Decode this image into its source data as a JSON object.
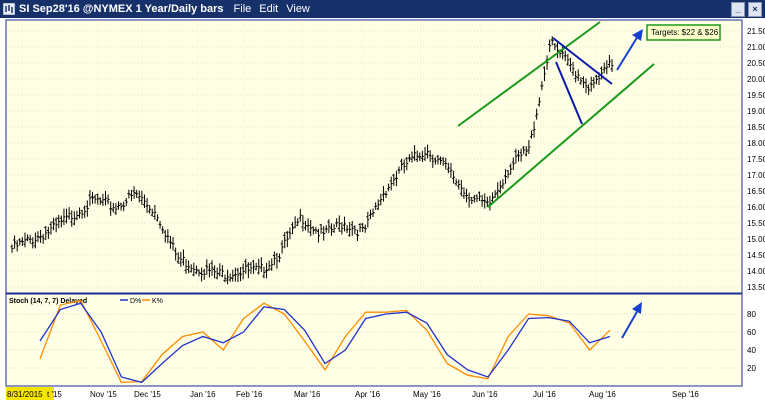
{
  "window": {
    "title": "SI Sep28'16 @NYMEX  1 Year/Daily bars",
    "menu": [
      "File",
      "Edit",
      "View"
    ],
    "colors": {
      "titlebar": "#16306a",
      "plot_bg": "#ffffe6",
      "border": "#1b2e8f",
      "channel": "#1a9a1a",
      "wedge": "#0a1aa8",
      "arrow": "#1a3fd0",
      "d_line": "#2233cc",
      "k_line": "#ff8c00"
    }
  },
  "main_panel": {
    "target_label": "Targets: $22 & $26",
    "y_ticks": [
      "21.500",
      "21.000",
      "20.500",
      "20.000",
      "19.500",
      "19.000",
      "18.500",
      "18.000",
      "17.500",
      "17.000",
      "16.500",
      "16.000",
      "15.500",
      "15.000",
      "14.500",
      "14.000",
      "13.500"
    ]
  },
  "stoch_panel": {
    "header": "Stoch (14, 7, 7) Delayed",
    "legend_d": "D%",
    "legend_k": "K%",
    "y_ticks": [
      "80",
      "60",
      "40",
      "20"
    ]
  },
  "x_axis": {
    "start_label": "8/31/2015",
    "cut_label": "t '15",
    "ticks": [
      "Nov '15",
      "Dec '15",
      "Jan '16",
      "Feb '16",
      "Mar '16",
      "Apr '16",
      "May '16",
      "Jun '16",
      "Jul '16",
      "Aug '16",
      "Sep '16"
    ]
  },
  "chart_data": [
    {
      "type": "ohlc",
      "title": "SI Sep28'16 @NYMEX  1 Year/Daily bars",
      "ylim": [
        13.3,
        21.8
      ],
      "annotation": "Targets: $22 & $26",
      "points": [
        {
          "x": "Sep 2015",
          "y": 14.7
        },
        {
          "x": "Sep 2015",
          "y": 15.0
        },
        {
          "x": "late Sep 2015",
          "y": 15.3
        },
        {
          "x": "early Oct 2015",
          "y": 15.8
        },
        {
          "x": "Oct 2015",
          "y": 16.2
        },
        {
          "x": "mid Oct 2015",
          "y": 16.0
        },
        {
          "x": "late Oct 2015",
          "y": 16.4
        },
        {
          "x": "Nov 2015",
          "y": 15.8
        },
        {
          "x": "mid Nov 2015",
          "y": 14.4
        },
        {
          "x": "Dec 2015",
          "y": 14.1
        },
        {
          "x": "mid Dec 2015",
          "y": 13.9
        },
        {
          "x": "Jan 2016",
          "y": 14.0
        },
        {
          "x": "mid Jan 2016",
          "y": 14.0
        },
        {
          "x": "Feb 2016",
          "y": 14.6
        },
        {
          "x": "mid Feb 2016",
          "y": 15.7
        },
        {
          "x": "Mar 2016",
          "y": 15.1
        },
        {
          "x": "mid Mar 2016",
          "y": 15.5
        },
        {
          "x": "Apr 2016",
          "y": 15.2
        },
        {
          "x": "mid Apr 2016",
          "y": 16.5
        },
        {
          "x": "late Apr 2016",
          "y": 17.3
        },
        {
          "x": "May 2016",
          "y": 17.8
        },
        {
          "x": "mid May 2016",
          "y": 17.2
        },
        {
          "x": "late May 2016",
          "y": 16.4
        },
        {
          "x": "early Jun 2016",
          "y": 16.0
        },
        {
          "x": "mid Jun 2016",
          "y": 17.2
        },
        {
          "x": "late Jun 2016",
          "y": 17.8
        },
        {
          "x": "early Jul 2016",
          "y": 21.1
        },
        {
          "x": "mid Jul 2016",
          "y": 20.4
        },
        {
          "x": "late Jul 2016",
          "y": 19.7
        },
        {
          "x": "early Aug 2016",
          "y": 20.5
        }
      ]
    },
    {
      "type": "line",
      "title": "Stoch (14, 7, 7) Delayed",
      "ylim": [
        0,
        100
      ],
      "series": [
        {
          "name": "D%",
          "values": [
            50,
            85,
            92,
            60,
            10,
            4,
            25,
            45,
            55,
            48,
            60,
            88,
            85,
            62,
            25,
            40,
            75,
            80,
            82,
            70,
            35,
            18,
            10,
            40,
            75,
            76,
            72,
            48,
            55
          ]
        },
        {
          "name": "K%",
          "values": [
            30,
            90,
            95,
            50,
            4,
            5,
            35,
            55,
            60,
            40,
            75,
            92,
            80,
            50,
            18,
            55,
            82,
            82,
            84,
            62,
            25,
            12,
            8,
            55,
            80,
            78,
            70,
            40,
            62
          ]
        }
      ]
    }
  ]
}
